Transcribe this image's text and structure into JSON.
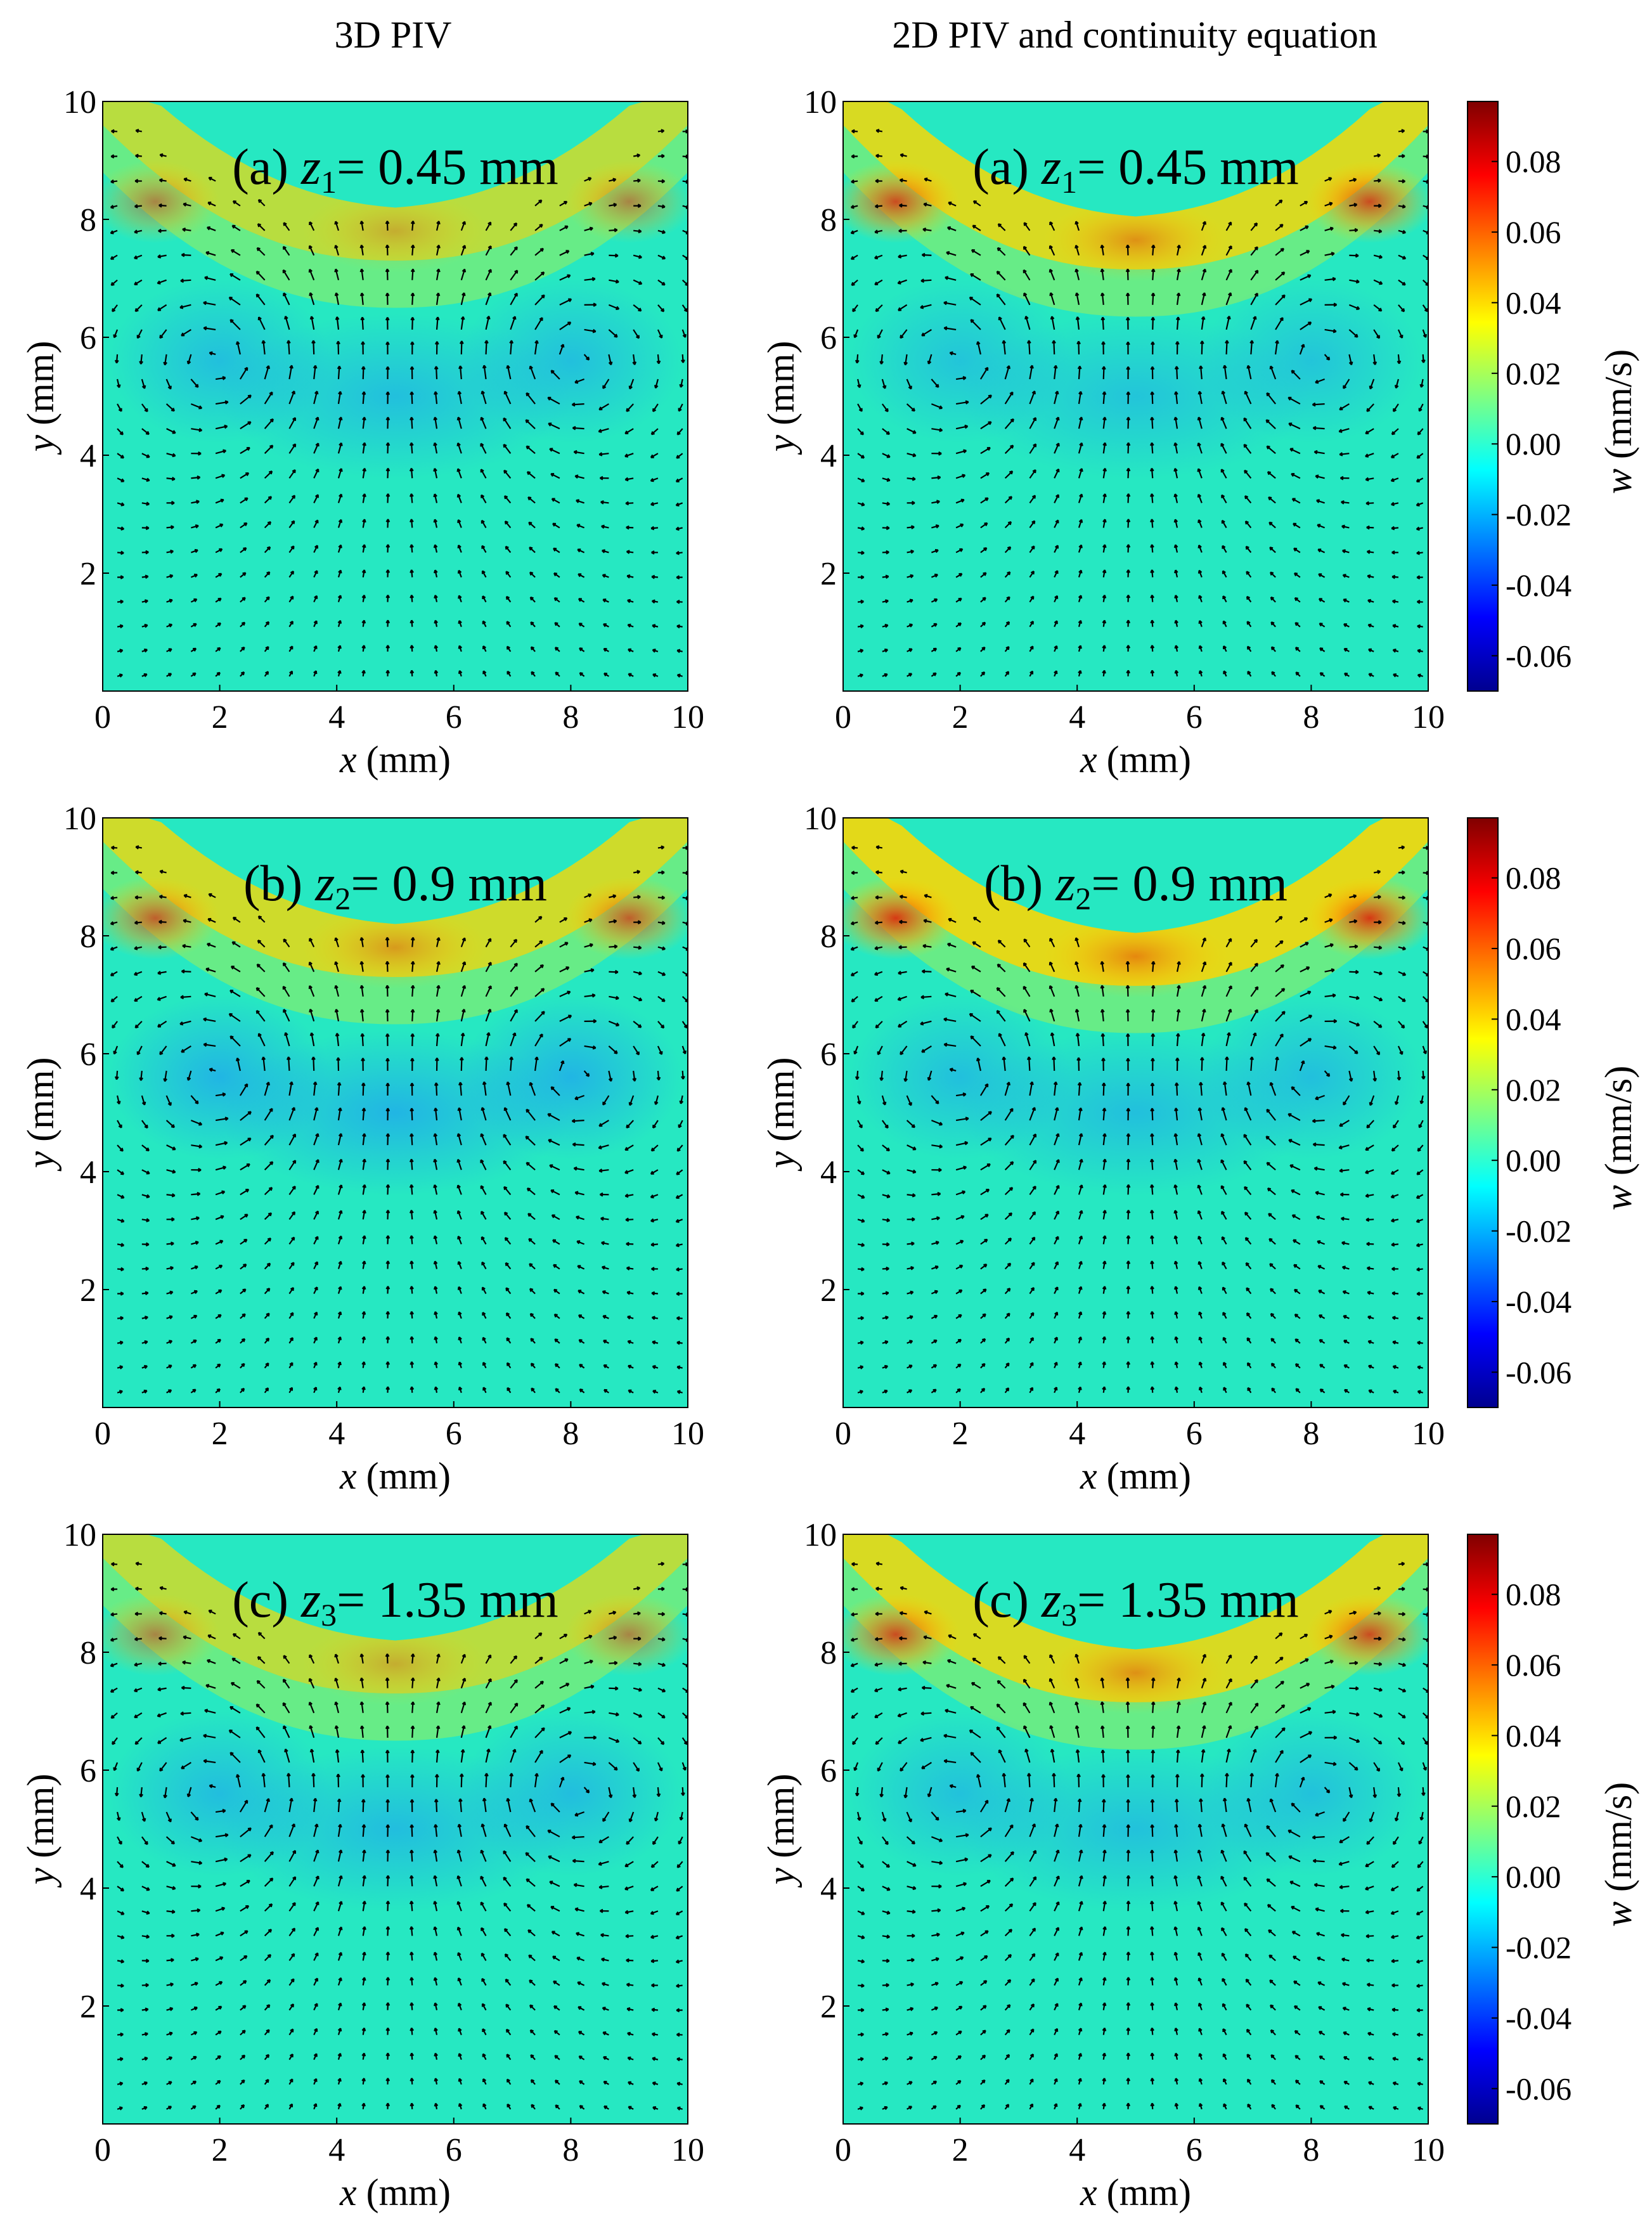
{
  "columns": [
    {
      "title": "3D PIV"
    },
    {
      "title": "2D PIV and continuity equation"
    }
  ],
  "panels": [
    {
      "row": 0,
      "col": 0,
      "label_prefix": "(a)",
      "z_sym": "z",
      "z_sub": "1",
      "value": "= 0.45 mm",
      "w_intensity": 0.55,
      "w_neg": 0.1
    },
    {
      "row": 0,
      "col": 1,
      "label_prefix": "(a)",
      "z_sym": "z",
      "z_sub": "1",
      "value": "= 0.45 mm",
      "w_intensity": 0.85,
      "w_neg": 0.05
    },
    {
      "row": 1,
      "col": 0,
      "label_prefix": "(b)",
      "z_sym": "z",
      "z_sub": "2",
      "value": "= 0.9 mm",
      "w_intensity": 0.75,
      "w_neg": 0.2
    },
    {
      "row": 1,
      "col": 1,
      "label_prefix": "(b)",
      "z_sym": "z",
      "z_sub": "2",
      "value": "= 0.9 mm",
      "w_intensity": 0.95,
      "w_neg": 0.1
    },
    {
      "row": 2,
      "col": 0,
      "label_prefix": "(c)",
      "z_sym": "z",
      "z_sub": "3",
      "value": "= 1.35 mm",
      "w_intensity": 0.55,
      "w_neg": 0.12
    },
    {
      "row": 2,
      "col": 1,
      "label_prefix": "(c)",
      "z_sym": "z",
      "z_sub": "3",
      "value": "= 1.35 mm",
      "w_intensity": 0.85,
      "w_neg": 0.08
    }
  ],
  "axes": {
    "x_ticks": [
      "0",
      "2",
      "4",
      "6",
      "8",
      "10"
    ],
    "x_values": [
      0,
      2,
      4,
      6,
      8,
      10
    ],
    "y_ticks": [
      "2",
      "4",
      "6",
      "8",
      "10"
    ],
    "y_values": [
      2,
      4,
      6,
      8,
      10
    ],
    "xlabel_var": "x",
    "xlabel_unit": " (mm)",
    "ylabel_var": "y",
    "ylabel_unit": " (mm)",
    "xlim": [
      0,
      10
    ],
    "ylim": [
      0,
      10
    ]
  },
  "colorbar": {
    "label_var": "w",
    "label_unit": " (mm/s)",
    "ticks": [
      "0.08",
      "0.06",
      "0.04",
      "0.02",
      "0.00",
      "-0.02",
      "-0.04",
      "-0.06"
    ],
    "tick_values": [
      0.08,
      0.06,
      0.04,
      0.02,
      0.0,
      -0.02,
      -0.04,
      -0.06
    ],
    "range": [
      -0.07,
      0.097
    ],
    "colors": [
      "#00008f",
      "#0000ff",
      "#0080ff",
      "#00ffff",
      "#80ff80",
      "#ffff00",
      "#ff8000",
      "#ff0000",
      "#800000"
    ]
  },
  "chart_data": {
    "type": "heatmap",
    "title": "",
    "xlabel": "x (mm)",
    "ylabel": "y (mm)",
    "colorbar_label": "w (mm/s)",
    "xlim": [
      0,
      10
    ],
    "ylim": [
      0,
      10
    ],
    "clim": [
      -0.07,
      0.097
    ],
    "columns": [
      "3D PIV",
      "2D PIV and continuity equation"
    ],
    "rows": [
      "z1 = 0.45 mm",
      "z2 = 0.9 mm",
      "z3 = 1.35 mm"
    ],
    "overlay": "velocity vector field (two counter-rotating vortices)"
  }
}
